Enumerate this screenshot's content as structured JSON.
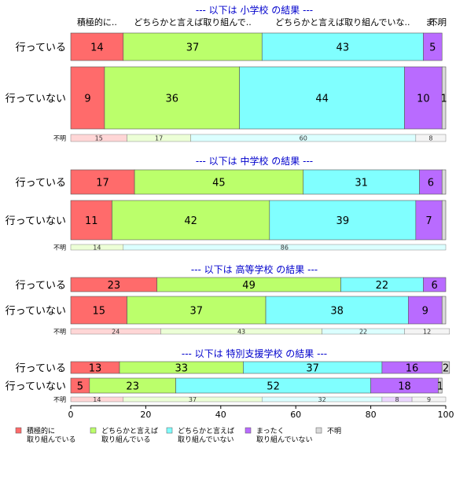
{
  "chart_data": {
    "type": "bar",
    "orientation": "horizontal",
    "stacked": "percent",
    "xlim": [
      0,
      100
    ],
    "x_ticks": [
      "0",
      "20",
      "40",
      "60",
      "80",
      "100"
    ],
    "top_category_headers": [
      "積極的に..",
      "どちらかと言えば取り組んで..",
      "どちらかと言えば取り組んでいな..",
      "ま..",
      "不明"
    ],
    "categories": [
      {
        "key": "c1",
        "label": "積極的に\n取り組んでいる",
        "color": "#ff6b6b"
      },
      {
        "key": "c2",
        "label": "どちらかと言えば\n取り組んでいる",
        "color": "#bbff6b"
      },
      {
        "key": "c3",
        "label": "どちらかと言えば\n取り組んでいない",
        "color": "#80ffff"
      },
      {
        "key": "c4",
        "label": "まったく\n取り組んでいない",
        "color": "#b96bff"
      },
      {
        "key": "c5",
        "label": "不明",
        "color": "#d9d9d9"
      }
    ],
    "groups": [
      {
        "title": "--- 以下は 小学校 の結果 ---",
        "bars": [
          {
            "label": "行っている",
            "values": [
              14,
              37,
              43,
              5,
              0
            ],
            "labels": [
              "14",
              "37",
              "43",
              "5",
              ""
            ]
          },
          {
            "label": "行っていない",
            "values": [
              9,
              36,
              44,
              10,
              1
            ],
            "labels": [
              "9",
              "36",
              "44",
              "10",
              "1"
            ]
          }
        ],
        "unknown": {
          "label": "不明",
          "values": [
            15,
            17,
            60,
            0,
            8
          ],
          "labels": [
            "15",
            "17",
            "60",
            "",
            "8"
          ]
        }
      },
      {
        "title": "--- 以下は 中学校 の結果 ---",
        "bars": [
          {
            "label": "行っている",
            "values": [
              17,
              45,
              31,
              6,
              1
            ],
            "labels": [
              "17",
              "45",
              "31",
              "6",
              ""
            ]
          },
          {
            "label": "行っていない",
            "values": [
              11,
              42,
              39,
              7,
              1
            ],
            "labels": [
              "11",
              "42",
              "39",
              "7",
              ""
            ]
          }
        ],
        "unknown": {
          "label": "不明",
          "values": [
            0,
            14,
            86,
            0,
            0
          ],
          "labels": [
            "",
            "14",
            "86",
            "",
            ""
          ]
        }
      },
      {
        "title": "--- 以下は 高等学校 の結果 ---",
        "bars": [
          {
            "label": "行っている",
            "values": [
              23,
              49,
              22,
              6,
              0
            ],
            "labels": [
              "23",
              "49",
              "22",
              "6",
              ""
            ]
          },
          {
            "label": "行っていない",
            "values": [
              15,
              37,
              38,
              9,
              1
            ],
            "labels": [
              "15",
              "37",
              "38",
              "9",
              ""
            ]
          }
        ],
        "unknown": {
          "label": "不明",
          "values": [
            24,
            43,
            22,
            0,
            12
          ],
          "labels": [
            "24",
            "43",
            "22",
            "",
            "12"
          ]
        }
      },
      {
        "title": "--- 以下は 特別支援学校 の結果 ---",
        "bars": [
          {
            "label": "行っている",
            "values": [
              13,
              33,
              37,
              16,
              2
            ],
            "labels": [
              "13",
              "33",
              "37",
              "16",
              "2"
            ]
          },
          {
            "label": "行っていない",
            "values": [
              5,
              23,
              52,
              18,
              1
            ],
            "labels": [
              "5",
              "23",
              "52",
              "18",
              "1"
            ]
          }
        ],
        "unknown": {
          "label": "不明",
          "values": [
            14,
            37,
            32,
            8,
            9
          ],
          "labels": [
            "14",
            "37",
            "32",
            "8",
            "9"
          ]
        }
      }
    ]
  }
}
